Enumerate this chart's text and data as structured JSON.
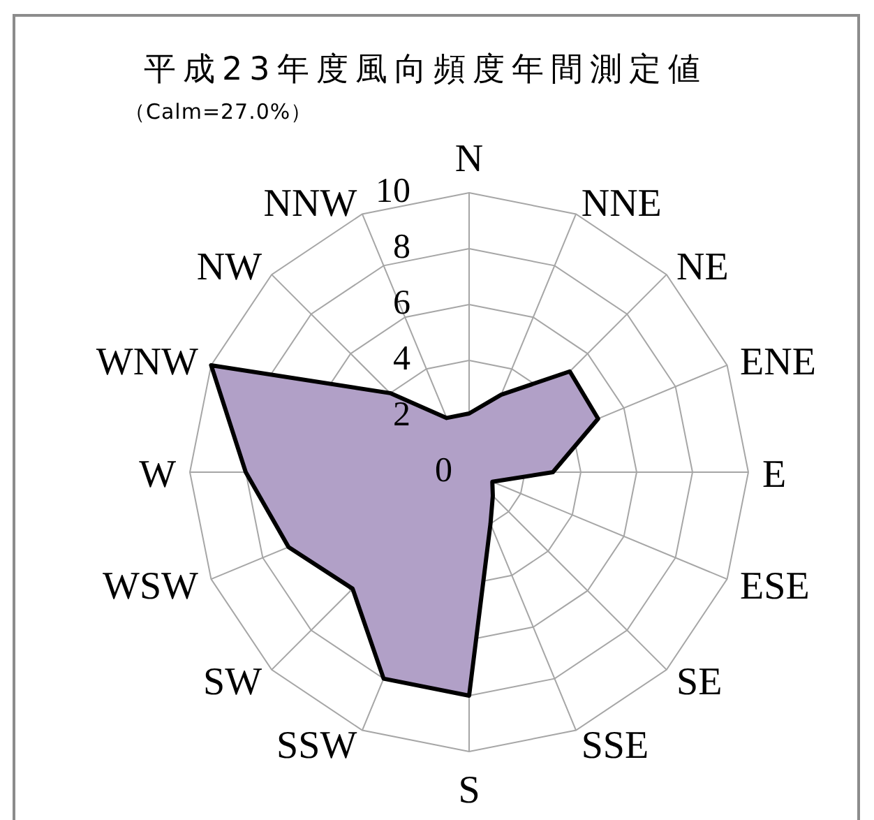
{
  "chart_data": {
    "type": "radar",
    "title": "平成23年度風向頻度年間測定値",
    "subtitle": "（Calm=27.0%）",
    "categories": [
      "N",
      "NNE",
      "NE",
      "ENE",
      "E",
      "ESE",
      "SE",
      "SSE",
      "S",
      "SSW",
      "SW",
      "WSW",
      "W",
      "WNW",
      "NW",
      "NNW"
    ],
    "series": [
      {
        "color": "#b1a0c7",
        "values": [
          2.1,
          3.0,
          5.1,
          5.0,
          3.0,
          0.9,
          1.2,
          2.0,
          8.0,
          8.0,
          5.9,
          7.0,
          8.0,
          10.0,
          4.0,
          2.1
        ]
      }
    ],
    "ylim": [
      0,
      10
    ],
    "yticks": [
      0,
      2,
      4,
      6,
      8,
      10
    ],
    "grid": true,
    "marker": "none",
    "line_style": "solid"
  }
}
